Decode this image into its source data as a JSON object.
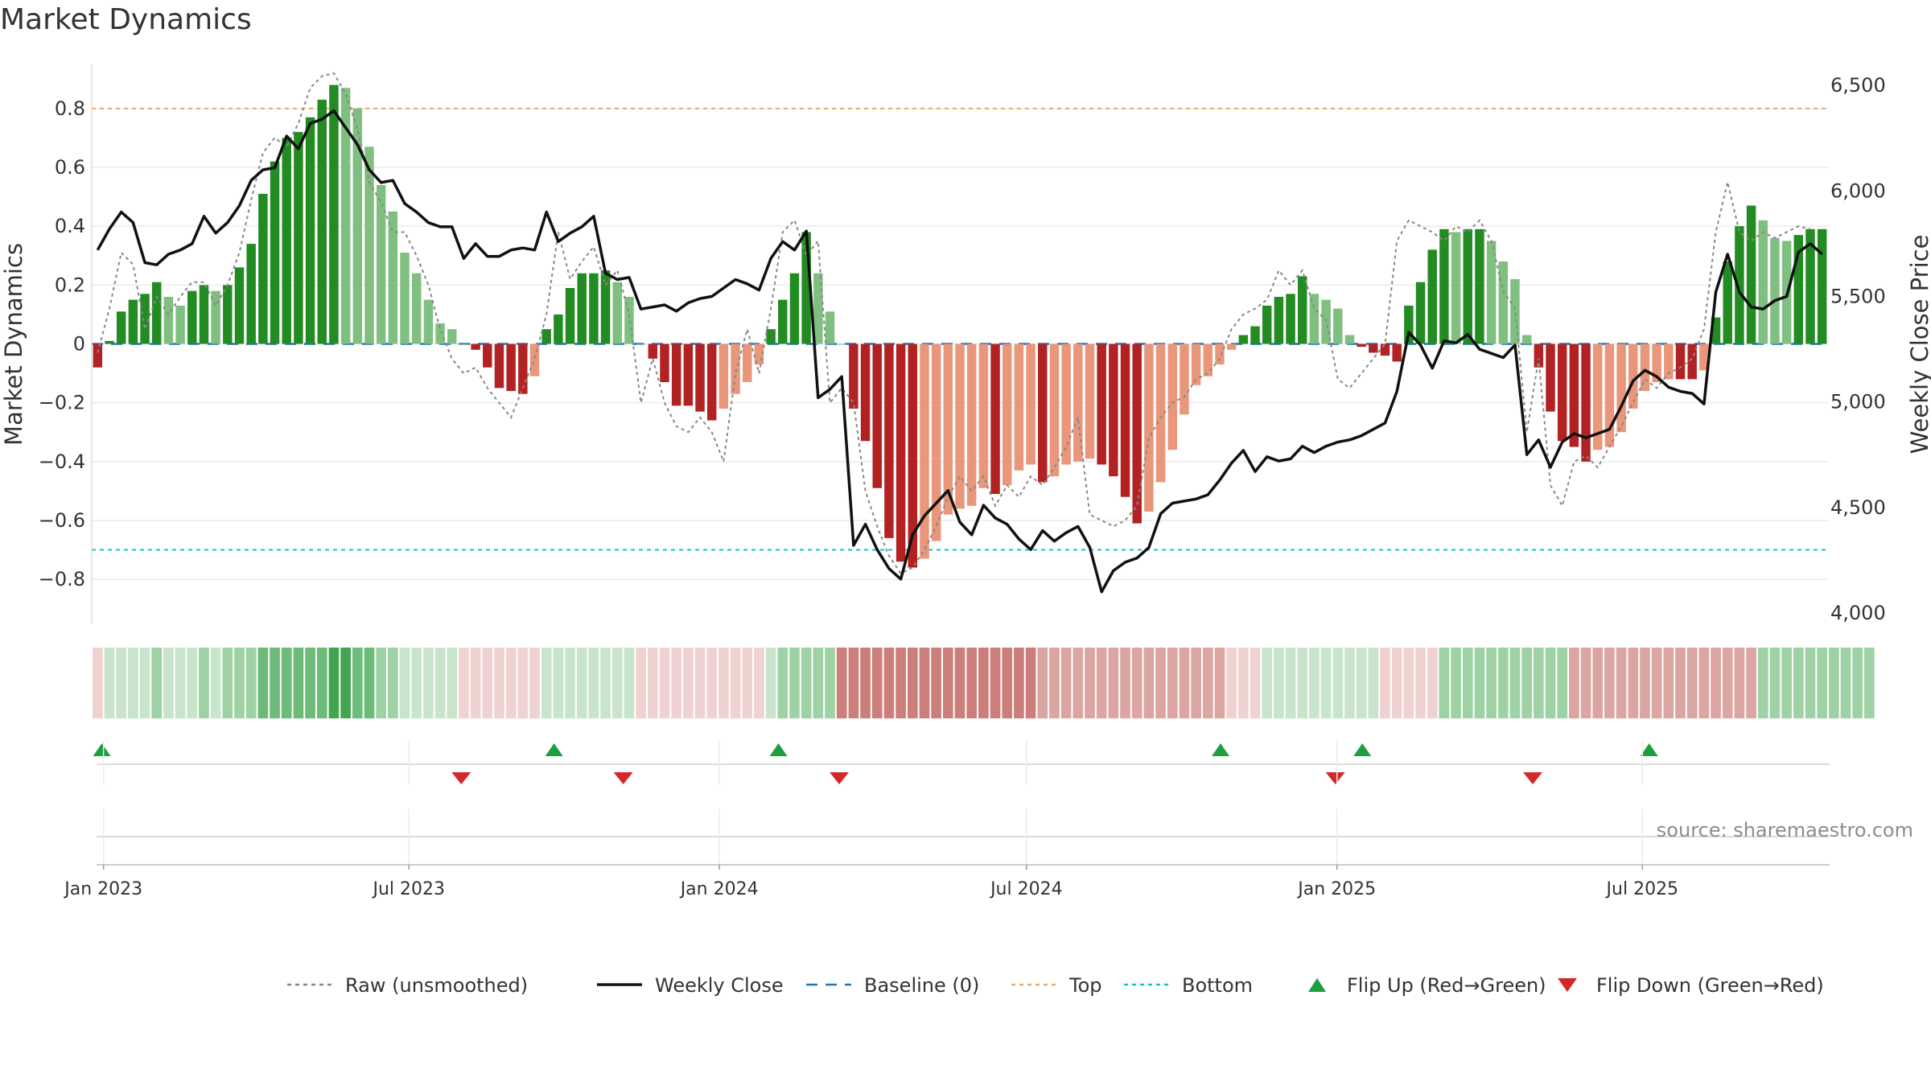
{
  "title": "Market Dynamics",
  "source": "source: sharemaestro.com",
  "colors": {
    "strong_green": "#228b22",
    "light_green": "#7fbf7f",
    "strong_red": "#b22222",
    "light_red": "#e9967a",
    "raw": "#888888",
    "close": "#111111",
    "baseline": "#1f77b4",
    "top": "#f4a460",
    "bottom": "#17becf",
    "flip_up": "#1e9e3e",
    "flip_down": "#d62728"
  },
  "legend": [
    {
      "key": "raw",
      "label": "Raw (unsmoothed)",
      "style": "dotted"
    },
    {
      "key": "close",
      "label": "Weekly Close",
      "style": "solid"
    },
    {
      "key": "baseline",
      "label": "Baseline (0)",
      "style": "dashed"
    },
    {
      "key": "top",
      "label": "Top",
      "style": "dotted"
    },
    {
      "key": "bottom",
      "label": "Bottom",
      "style": "dotted"
    },
    {
      "key": "flip_up",
      "label": "Flip Up (Red→Green)",
      "style": "tri-up"
    },
    {
      "key": "flip_down",
      "label": "Flip Down (Green→Red)",
      "style": "tri-down"
    }
  ],
  "chart_data": {
    "type": "bar",
    "ylabel": "Market Dynamics",
    "y2label": "Weekly Close Price",
    "ylim": [
      -0.95,
      0.95
    ],
    "y2lim": [
      3950,
      6600
    ],
    "yticks": [
      0.8,
      0.6,
      0.4,
      0.2,
      0,
      -0.2,
      -0.4,
      -0.6,
      -0.8
    ],
    "ytick_labels": [
      "0.8",
      "0.6",
      "0.4",
      "0.2",
      "0",
      "−0.2",
      "−0.4",
      "−0.6",
      "−0.8"
    ],
    "y2ticks": [
      6500,
      6000,
      5500,
      5000,
      4500,
      4000
    ],
    "y2tick_labels": [
      "6,500",
      "6,000",
      "5,500",
      "5,000",
      "4,500",
      "4,000"
    ],
    "xticks": [
      {
        "date": "2023-01-01",
        "label": "Jan 2023"
      },
      {
        "date": "2023-07-01",
        "label": "Jul 2023"
      },
      {
        "date": "2024-01-01",
        "label": "Jan 2024"
      },
      {
        "date": "2024-07-01",
        "label": "Jul 2024"
      },
      {
        "date": "2025-01-01",
        "label": "Jan 2025"
      },
      {
        "date": "2025-07-01",
        "label": "Jul 2025"
      }
    ],
    "reference_lines": {
      "baseline": 0,
      "top": 0.8,
      "bottom": -0.7
    },
    "first_week": "2022-12-25",
    "weekly_dynamics": [
      -0.08,
      0.01,
      0.11,
      0.15,
      0.17,
      0.21,
      0.16,
      0.13,
      0.18,
      0.2,
      0.18,
      0.2,
      0.26,
      0.34,
      0.51,
      0.62,
      0.7,
      0.72,
      0.77,
      0.83,
      0.88,
      0.87,
      0.8,
      0.67,
      0.54,
      0.45,
      0.31,
      0.24,
      0.15,
      0.07,
      0.05,
      0,
      -0.02,
      -0.08,
      -0.15,
      -0.16,
      -0.17,
      -0.11,
      0.05,
      0.1,
      0.19,
      0.24,
      0.24,
      0.25,
      0.21,
      0.16,
      0,
      -0.05,
      -0.13,
      -0.21,
      -0.21,
      -0.23,
      -0.26,
      -0.22,
      -0.17,
      -0.13,
      -0.07,
      0.05,
      0.15,
      0.24,
      0.38,
      0.24,
      0.11,
      0,
      -0.22,
      -0.33,
      -0.49,
      -0.66,
      -0.74,
      -0.76,
      -0.73,
      -0.67,
      -0.58,
      -0.56,
      -0.55,
      -0.49,
      -0.51,
      -0.48,
      -0.43,
      -0.41,
      -0.47,
      -0.45,
      -0.41,
      -0.4,
      -0.39,
      -0.41,
      -0.45,
      -0.52,
      -0.61,
      -0.57,
      -0.47,
      -0.36,
      -0.24,
      -0.14,
      -0.11,
      -0.07,
      -0.02,
      0.03,
      0.06,
      0.13,
      0.16,
      0.17,
      0.23,
      0.17,
      0.15,
      0.12,
      0.03,
      -0.01,
      -0.03,
      -0.04,
      -0.06,
      0.13,
      0.21,
      0.32,
      0.39,
      0.38,
      0.39,
      0.39,
      0.35,
      0.28,
      0.22,
      0.03,
      -0.08,
      -0.23,
      -0.33,
      -0.35,
      -0.4,
      -0.36,
      -0.35,
      -0.3,
      -0.22,
      -0.16,
      -0.13,
      -0.12,
      -0.12,
      -0.12,
      -0.09,
      0.09,
      0.28,
      0.4,
      0.47,
      0.42,
      0.36,
      0.35,
      0.37,
      0.39,
      0.39
    ],
    "weekly_raw": [
      -0.03,
      0.12,
      0.31,
      0.27,
      0.05,
      0.16,
      0.1,
      0.16,
      0.21,
      0.21,
      0.13,
      0.2,
      0.31,
      0.49,
      0.65,
      0.7,
      0.67,
      0.75,
      0.87,
      0.91,
      0.92,
      0.85,
      0.73,
      0.55,
      0.48,
      0.38,
      0.38,
      0.3,
      0.2,
      0.05,
      -0.05,
      -0.1,
      -0.08,
      -0.15,
      -0.2,
      -0.25,
      -0.15,
      -0.05,
      0.1,
      0.38,
      0.22,
      0.28,
      0.33,
      0.2,
      0.25,
      0.1,
      -0.2,
      -0.05,
      -0.2,
      -0.28,
      -0.3,
      -0.25,
      -0.3,
      -0.4,
      -0.1,
      0.05,
      -0.1,
      0.12,
      0.38,
      0.42,
      0.3,
      0.35,
      -0.2,
      -0.15,
      -0.2,
      -0.5,
      -0.62,
      -0.72,
      -0.78,
      -0.76,
      -0.7,
      -0.62,
      -0.52,
      -0.45,
      -0.5,
      -0.45,
      -0.55,
      -0.48,
      -0.52,
      -0.45,
      -0.48,
      -0.42,
      -0.35,
      -0.25,
      -0.58,
      -0.6,
      -0.62,
      -0.6,
      -0.55,
      -0.32,
      -0.25,
      -0.2,
      -0.18,
      -0.12,
      -0.1,
      -0.05,
      0.05,
      0.1,
      0.12,
      0.15,
      0.25,
      0.2,
      0.25,
      0.12,
      0.08,
      -0.12,
      -0.15,
      -0.1,
      -0.05,
      0.0,
      0.35,
      0.42,
      0.4,
      0.38,
      0.35,
      0.4,
      0.38,
      0.42,
      0.35,
      0.18,
      0.12,
      -0.3,
      -0.05,
      -0.48,
      -0.55,
      -0.4,
      -0.38,
      -0.42,
      -0.35,
      -0.28,
      -0.2,
      -0.12,
      -0.15,
      -0.1,
      -0.08,
      -0.05,
      0.05,
      0.38,
      0.55,
      0.38,
      0.35,
      0.38,
      0.36,
      0.38,
      0.4,
      0.39
    ],
    "weekly_close": [
      5720,
      5820,
      5900,
      5850,
      5660,
      5650,
      5700,
      5720,
      5750,
      5880,
      5800,
      5850,
      5930,
      6050,
      6100,
      6110,
      6260,
      6200,
      6320,
      6340,
      6380,
      6300,
      6220,
      6100,
      6040,
      6050,
      5940,
      5900,
      5850,
      5830,
      5830,
      5680,
      5750,
      5690,
      5690,
      5720,
      5730,
      5720,
      5900,
      5760,
      5800,
      5830,
      5880,
      5610,
      5580,
      5590,
      5440,
      5450,
      5460,
      5430,
      5470,
      5490,
      5500,
      5540,
      5580,
      5560,
      5530,
      5680,
      5760,
      5720,
      5810,
      5020,
      5060,
      5120,
      4320,
      4420,
      4300,
      4210,
      4160,
      4370,
      4460,
      4520,
      4580,
      4430,
      4370,
      4510,
      4450,
      4420,
      4350,
      4300,
      4390,
      4340,
      4380,
      4410,
      4310,
      4100,
      4200,
      4240,
      4260,
      4310,
      4470,
      4520,
      4530,
      4540,
      4560,
      4630,
      4710,
      4770,
      4670,
      4740,
      4720,
      4730,
      4790,
      4760,
      4790,
      4810,
      4820,
      4840,
      4870,
      4900,
      5050,
      5330,
      5270,
      5160,
      5290,
      5280,
      5320,
      5250,
      5230,
      5210,
      5270,
      4750,
      4820,
      4690,
      4810,
      4850,
      4830,
      4850,
      4870,
      4980,
      5100,
      5150,
      5120,
      5070,
      5050,
      5040,
      4990,
      5520,
      5700,
      5520,
      5450,
      5440,
      5480,
      5500,
      5710,
      5750,
      5700
    ],
    "heatmap_strip": [
      -1,
      1,
      1,
      1,
      1,
      2,
      1,
      1,
      1,
      2,
      1,
      2,
      2,
      2,
      3,
      3,
      3,
      3,
      3,
      3,
      4,
      4,
      3,
      3,
      2,
      2,
      1,
      1,
      1,
      1,
      1,
      -1,
      -1,
      -1,
      -1,
      -1,
      -1,
      -1,
      1,
      1,
      1,
      1,
      1,
      1,
      1,
      1,
      -1,
      -1,
      -1,
      -1,
      -1,
      -1,
      -1,
      -1,
      -1,
      -1,
      -1,
      1,
      2,
      2,
      2,
      2,
      2,
      -3,
      -3,
      -3,
      -3,
      -3,
      -3,
      -3,
      -3,
      -3,
      -3,
      -3,
      -3,
      -3,
      -3,
      -3,
      -3,
      -3,
      -2,
      -2,
      -2,
      -2,
      -2,
      -2,
      -2,
      -2,
      -2,
      -2,
      -2,
      -2,
      -2,
      -2,
      -2,
      -2,
      -1,
      -1,
      -1,
      1,
      1,
      1,
      1,
      1,
      1,
      1,
      1,
      1,
      1,
      -1,
      -1,
      -1,
      -1,
      -1,
      2,
      2,
      2,
      2,
      2,
      2,
      2,
      2,
      2,
      2,
      2,
      -2,
      -2,
      -2,
      -2,
      -2,
      -2,
      -2,
      -2,
      -2,
      -2,
      -2,
      -2,
      -2,
      -2,
      -2,
      -2,
      2,
      2,
      2,
      2,
      2,
      2,
      2,
      2,
      2,
      2
    ],
    "flips_up": [
      "2022-12-31",
      "2023-09-25",
      "2024-02-05",
      "2024-10-24",
      "2025-01-16",
      "2025-07-05"
    ],
    "flips_down": [
      "2023-08-01",
      "2023-11-05",
      "2024-03-12",
      "2024-12-31",
      "2025-04-27"
    ]
  }
}
